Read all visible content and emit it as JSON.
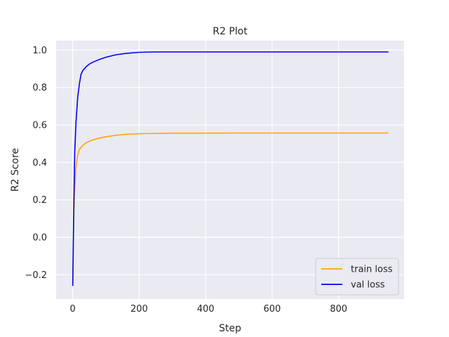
{
  "chart_data": {
    "type": "line",
    "title": "R2 Plot",
    "xlabel": "Step",
    "ylabel": "R2 Score",
    "xlim": [
      -50,
      997
    ],
    "ylim": [
      -0.33,
      1.05
    ],
    "xticks": [
      0,
      200,
      400,
      600,
      800
    ],
    "yticks": [
      -0.2,
      0.0,
      0.2,
      0.4,
      0.6,
      0.8,
      1.0
    ],
    "xtick_labels": [
      "0",
      "200",
      "400",
      "600",
      "800"
    ],
    "ytick_labels": [
      "−0.2",
      "0.0",
      "0.2",
      "0.4",
      "0.6",
      "0.8",
      "1.0"
    ],
    "grid": true,
    "legend_position": "lower-right",
    "series": [
      {
        "name": "train loss",
        "color": "#ffa500",
        "x": [
          0,
          3,
          6,
          10,
          15,
          20,
          30,
          40,
          60,
          80,
          100,
          130,
          160,
          200,
          250,
          300,
          400,
          500,
          600,
          700,
          800,
          950
        ],
        "y": [
          -0.26,
          0.08,
          0.26,
          0.38,
          0.44,
          0.47,
          0.49,
          0.505,
          0.52,
          0.53,
          0.537,
          0.545,
          0.55,
          0.553,
          0.555,
          0.556,
          0.556,
          0.557,
          0.557,
          0.557,
          0.557,
          0.557
        ]
      },
      {
        "name": "val loss",
        "color": "#0000ff",
        "x": [
          0,
          3,
          6,
          10,
          15,
          20,
          25,
          30,
          40,
          50,
          60,
          80,
          100,
          130,
          160,
          200,
          250,
          300,
          400,
          500,
          600,
          700,
          800,
          950
        ],
        "y": [
          -0.26,
          0.15,
          0.45,
          0.62,
          0.75,
          0.82,
          0.87,
          0.89,
          0.91,
          0.925,
          0.935,
          0.95,
          0.962,
          0.975,
          0.982,
          0.988,
          0.99,
          0.99,
          0.99,
          0.99,
          0.99,
          0.99,
          0.99,
          0.99
        ]
      }
    ]
  }
}
